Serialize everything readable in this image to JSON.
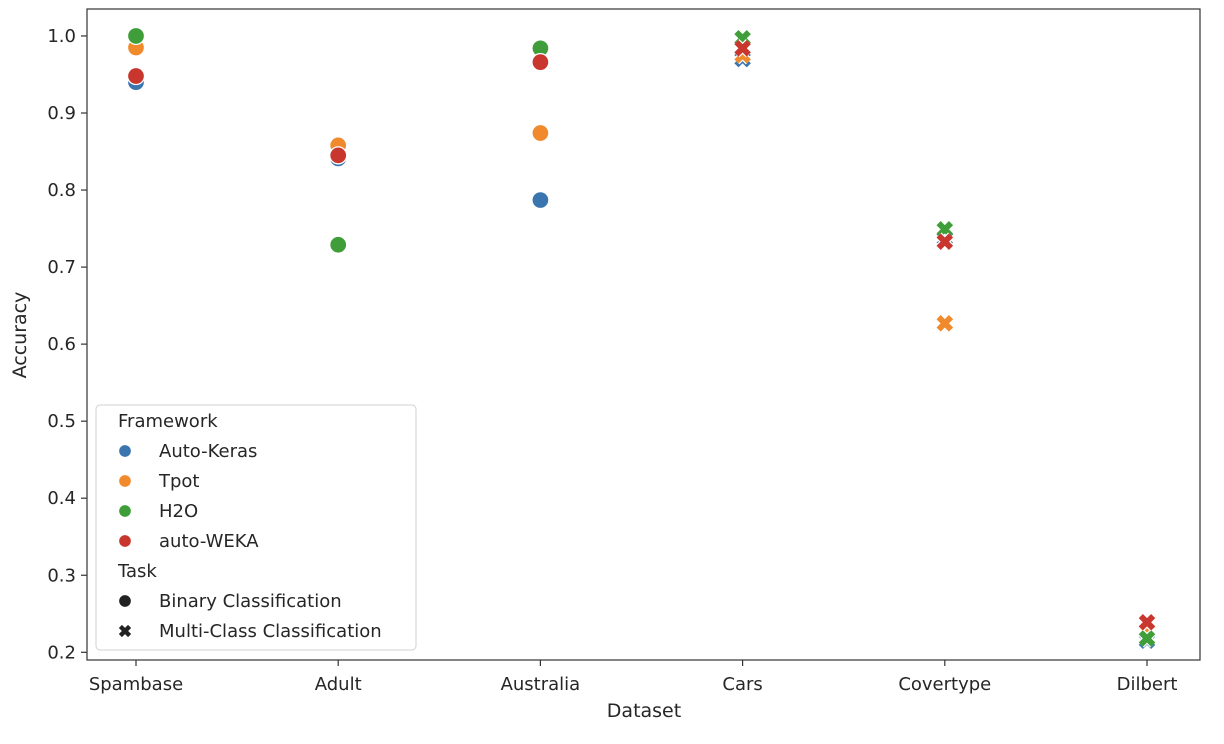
{
  "chart_data": {
    "type": "scatter",
    "xlabel": "Dataset",
    "ylabel": "Accuracy",
    "categories": [
      "Spambase",
      "Adult",
      "Australia",
      "Cars",
      "Covertype",
      "Dilbert"
    ],
    "yticks": [
      "0.2",
      "0.3",
      "0.4",
      "0.5",
      "0.6",
      "0.7",
      "0.8",
      "0.9",
      "1.0"
    ],
    "ylim": [
      0.19,
      1.035
    ],
    "grid": false,
    "legend_placement": "lower-left",
    "legend": {
      "hue_title": "Framework",
      "style_title": "Task",
      "styles": [
        {
          "label": "Binary Classification",
          "marker": "circle"
        },
        {
          "label": "Multi-Class Classification",
          "marker": "x"
        }
      ]
    },
    "series": [
      {
        "name": "Auto-Keras",
        "color": "#3a75b0",
        "values": [
          0.94,
          0.841,
          0.787,
          0.97,
          0.737,
          0.215
        ]
      },
      {
        "name": "Tpot",
        "color": "#f08a2c",
        "values": [
          0.985,
          0.858,
          0.874,
          0.975,
          0.627,
          0.228
        ]
      },
      {
        "name": "H2O",
        "color": "#3f9e3a",
        "values": [
          1.0,
          0.729,
          0.984,
          0.997,
          0.749,
          0.218
        ]
      },
      {
        "name": "auto-WEKA",
        "color": "#c8362e",
        "values": [
          0.948,
          0.845,
          0.966,
          0.984,
          0.733,
          0.239
        ]
      }
    ],
    "task_by_category": [
      "binary",
      "binary",
      "binary",
      "multi",
      "multi",
      "multi"
    ]
  }
}
